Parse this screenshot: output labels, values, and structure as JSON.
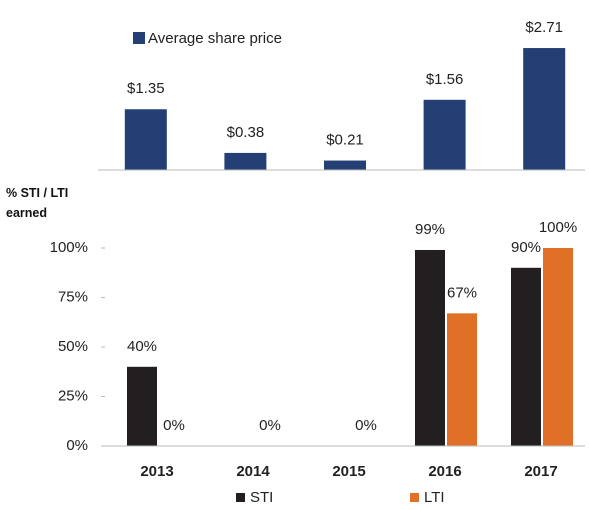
{
  "chart_data": [
    {
      "type": "bar",
      "legend": "Average share price",
      "legend_position": "top-left",
      "categories": [
        "2013",
        "2014",
        "2015",
        "2016",
        "2017"
      ],
      "values": [
        1.35,
        0.38,
        0.21,
        1.56,
        2.71
      ],
      "value_labels": [
        "$1.35",
        "$0.38",
        "$0.21",
        "$1.56",
        "$2.71"
      ],
      "color": "#243f73",
      "ylim": [
        0,
        3
      ]
    },
    {
      "type": "grouped_bar",
      "y_label": "% STI / LTI earned",
      "categories": [
        "2013",
        "2014",
        "2015",
        "2016",
        "2017"
      ],
      "series": [
        {
          "name": "STI",
          "color": "#231f20",
          "values": [
            40,
            0,
            0,
            99,
            90
          ],
          "value_labels": [
            "40%",
            null,
            null,
            "99%",
            "90%"
          ]
        },
        {
          "name": "LTI",
          "color": "#e07028",
          "values": [
            0,
            0,
            0,
            67,
            100
          ],
          "value_labels": [
            "0%",
            "0%",
            "0%",
            "67%",
            "100%"
          ]
        }
      ],
      "ylim": [
        0,
        100
      ],
      "yticks": [
        {
          "value": 0,
          "label": "0%"
        },
        {
          "value": 25,
          "label": "25%"
        },
        {
          "value": 50,
          "label": "50%"
        },
        {
          "value": 75,
          "label": "75%"
        },
        {
          "value": 100,
          "label": "100%"
        }
      ],
      "legend_position": "bottom"
    }
  ]
}
